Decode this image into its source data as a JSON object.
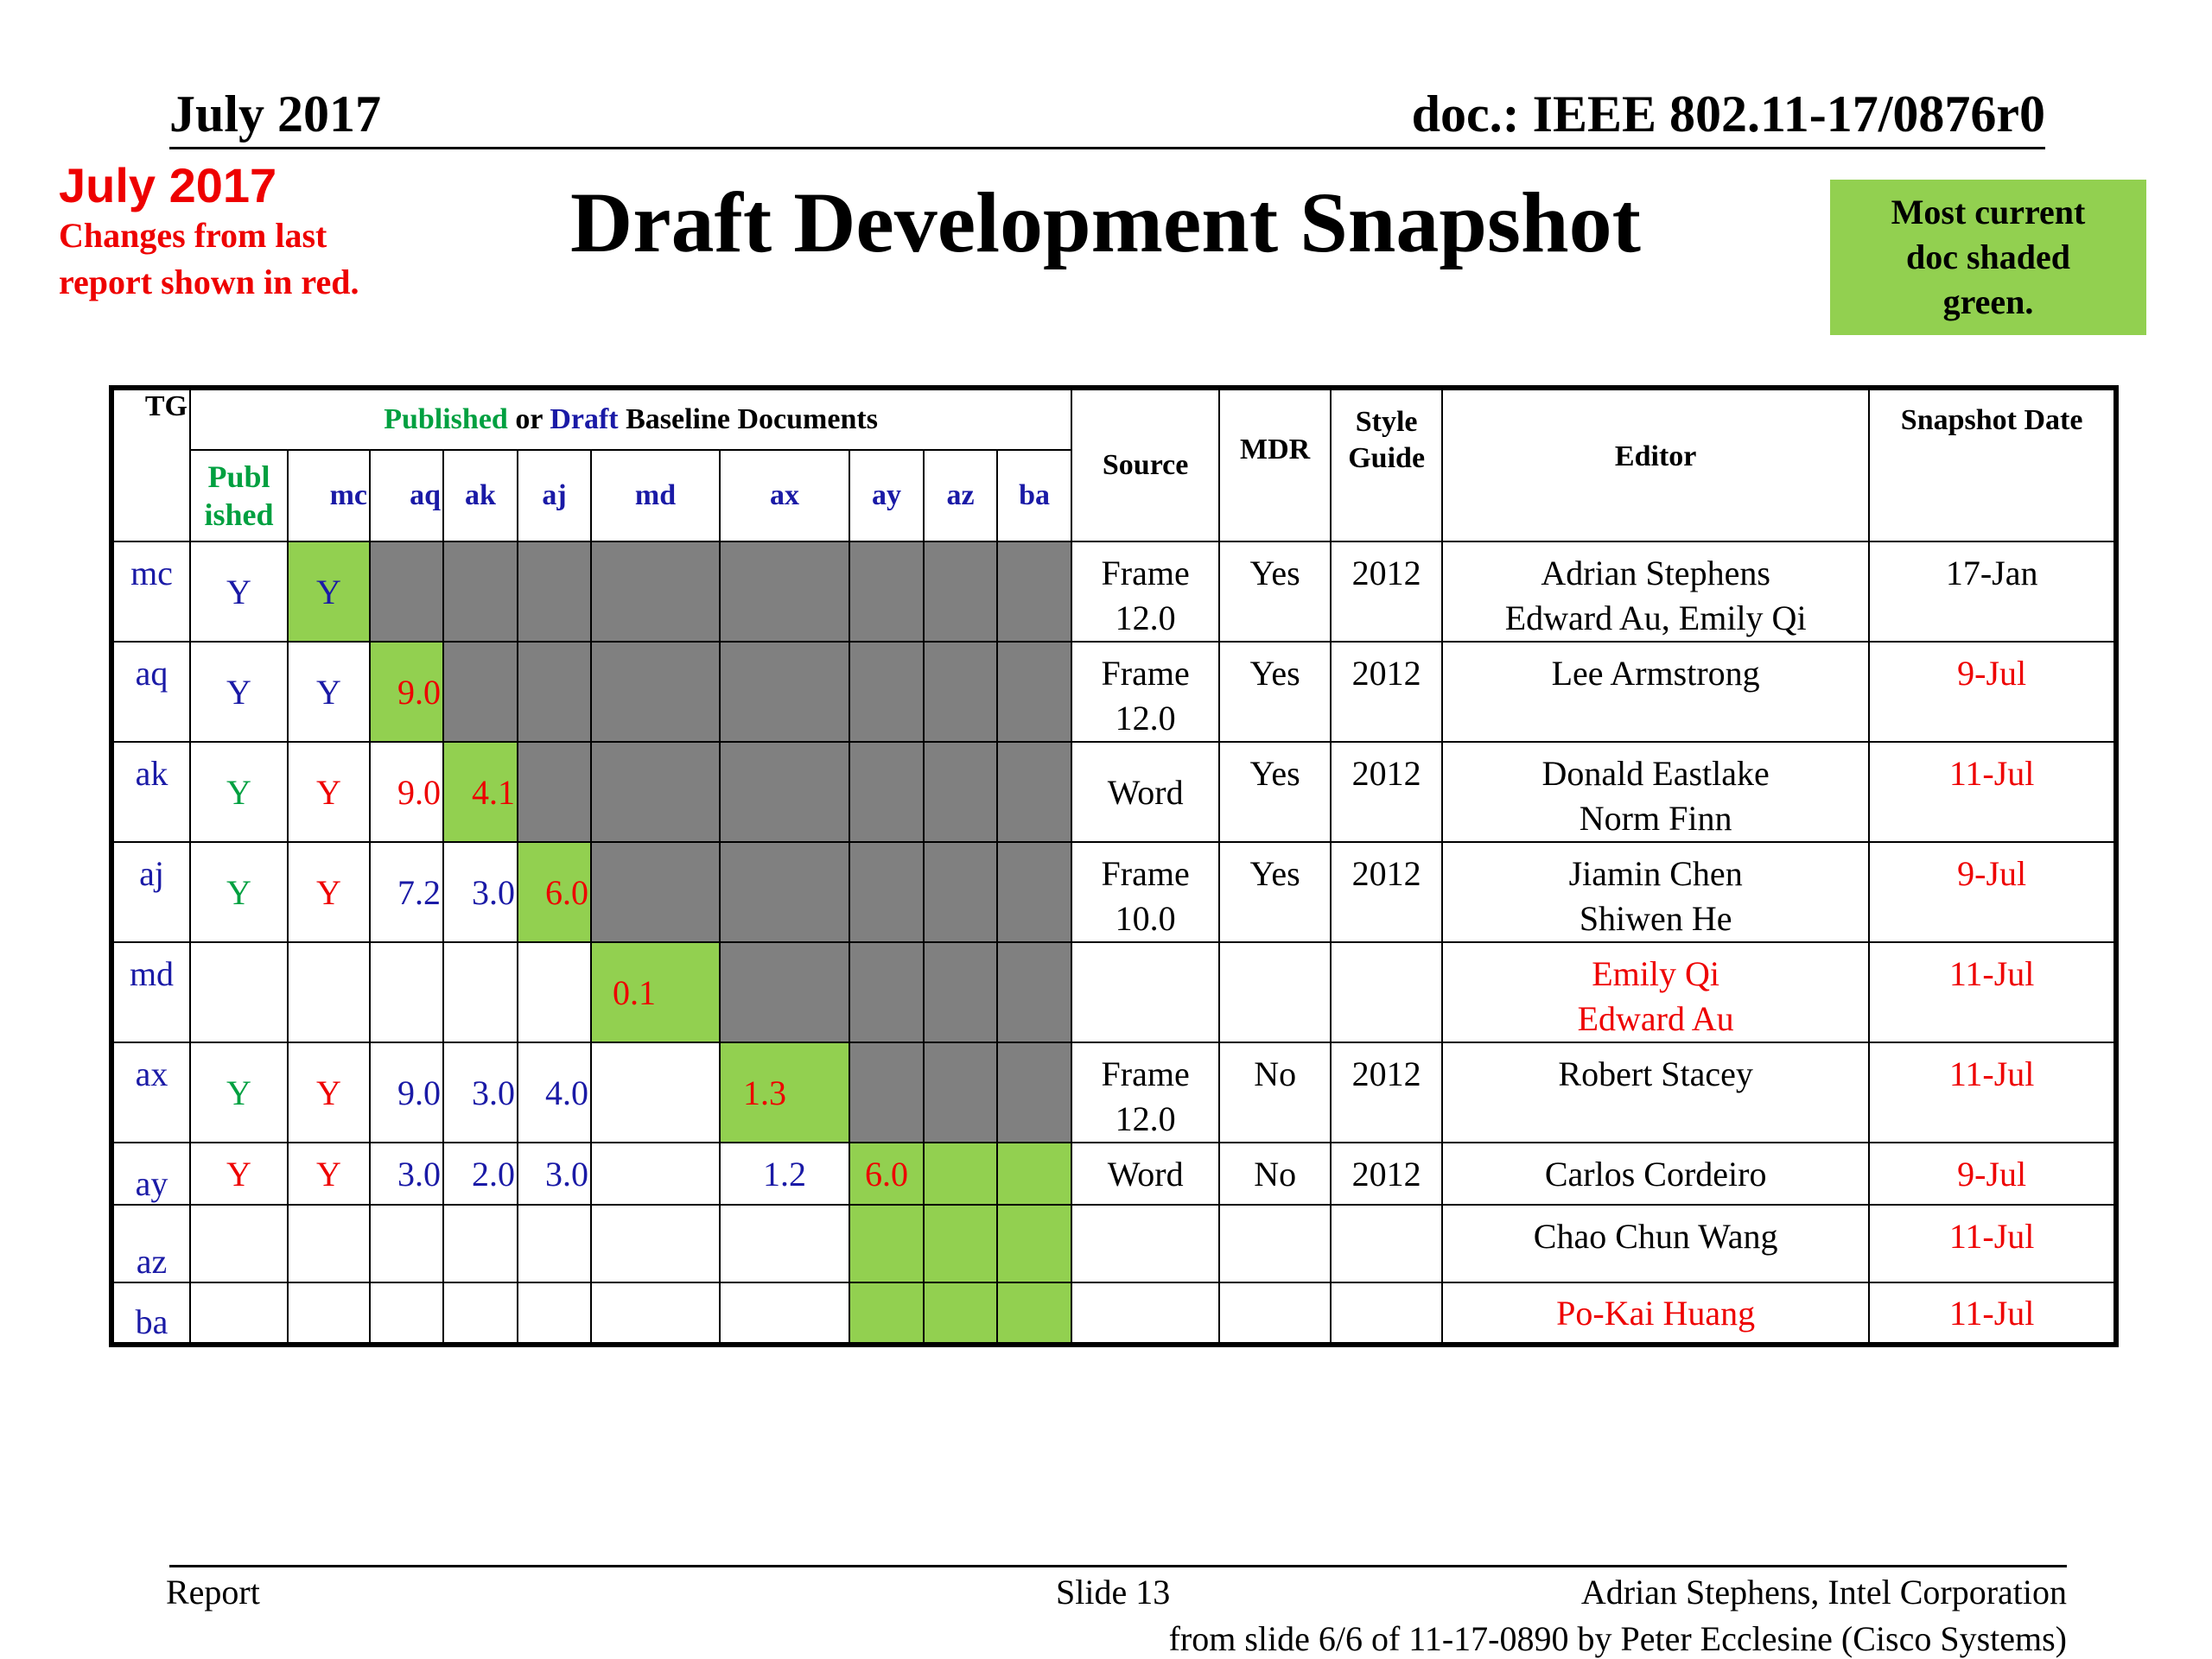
{
  "header": {
    "date": "July 2017",
    "doc": "doc.: IEEE 802.11-17/0876r0"
  },
  "note": {
    "title": "July 2017",
    "line1": "Changes from  last",
    "line2": "report shown in red."
  },
  "title": "Draft Development Snapshot",
  "legend": {
    "line1": "Most current",
    "line2": "doc shaded",
    "line3": "green."
  },
  "colors": {
    "green": "#92d050",
    "gray": "#808080",
    "red": "#ee0000",
    "blue": "#1a1aa6",
    "published_green": "#00a040"
  },
  "table": {
    "headers": {
      "tg": "TG",
      "baseline_published": "Published",
      "baseline_or": " or ",
      "baseline_draft": "Draft",
      "baseline_rest": " Baseline Documents",
      "source": "Source",
      "mdr": "MDR",
      "style_line1": "Style",
      "style_line2": "Guide",
      "editor": "Editor",
      "snapshot_date": "Snapshot Date",
      "published_line1": "Publ",
      "published_line2": "ished",
      "sub": [
        "mc",
        "aq",
        "ak",
        "aj",
        "md",
        "ax",
        "ay",
        "az",
        "ba"
      ]
    },
    "rows": [
      {
        "tg": "mc",
        "published": "Y",
        "mc": "Y",
        "source1": "Frame",
        "source2": "12.0",
        "mdr": "Yes",
        "style": "2012",
        "editor1": "Adrian Stephens",
        "editor2": "Edward Au, Emily Qi",
        "date": "17-Jan"
      },
      {
        "tg": "aq",
        "published": "Y",
        "mc": "Y",
        "aq": "9.0",
        "source1": "Frame",
        "source2": "12.0",
        "mdr": "Yes",
        "style": "2012",
        "editor1": "Lee Armstrong",
        "date": "9-Jul"
      },
      {
        "tg": "ak",
        "published": "Y",
        "mc": "Y",
        "aq": "9.0",
        "ak": "4.1",
        "source1": "Word",
        "mdr": "Yes",
        "style": "2012",
        "editor1": "Donald Eastlake",
        "editor2": "Norm Finn",
        "date": "11-Jul"
      },
      {
        "tg": "aj",
        "published": "Y",
        "mc": "Y",
        "aq": "7.2",
        "ak": "3.0",
        "aj": "6.0",
        "source1": "Frame",
        "source2": "10.0",
        "mdr": "Yes",
        "style": "2012",
        "editor1": "Jiamin Chen",
        "editor2": "Shiwen He",
        "date": "9-Jul"
      },
      {
        "tg": "md",
        "md": "0.1",
        "editor1": "Emily Qi",
        "editor2": "Edward Au",
        "date": "11-Jul"
      },
      {
        "tg": "ax",
        "published": "Y",
        "mc": "Y",
        "aq": "9.0",
        "ak": "3.0",
        "aj": "4.0",
        "ax": "1.3",
        "source1": "Frame",
        "source2": "12.0",
        "mdr": "No",
        "style": "2012",
        "editor1": "Robert Stacey",
        "date": "11-Jul"
      },
      {
        "tg": "ay",
        "published": "Y",
        "mc": "Y",
        "aq": "3.0",
        "ak": "2.0",
        "aj": "3.0",
        "ax": "1.2",
        "ay": "6.0",
        "source1": "Word",
        "mdr": "No",
        "style": "2012",
        "editor1": "Carlos Cordeiro",
        "date": "9-Jul"
      },
      {
        "tg": "az",
        "editor1": "Chao Chun Wang",
        "date": "11-Jul"
      },
      {
        "tg": "ba",
        "editor1": "Po-Kai Huang",
        "date": "11-Jul"
      }
    ]
  },
  "footer": {
    "left": "Report",
    "slide": "Slide 13",
    "right": "Adrian Stephens, Intel Corporation",
    "source": "from slide 6/6 of 11-17-0890 by Peter Ecclesine (Cisco Systems)"
  }
}
